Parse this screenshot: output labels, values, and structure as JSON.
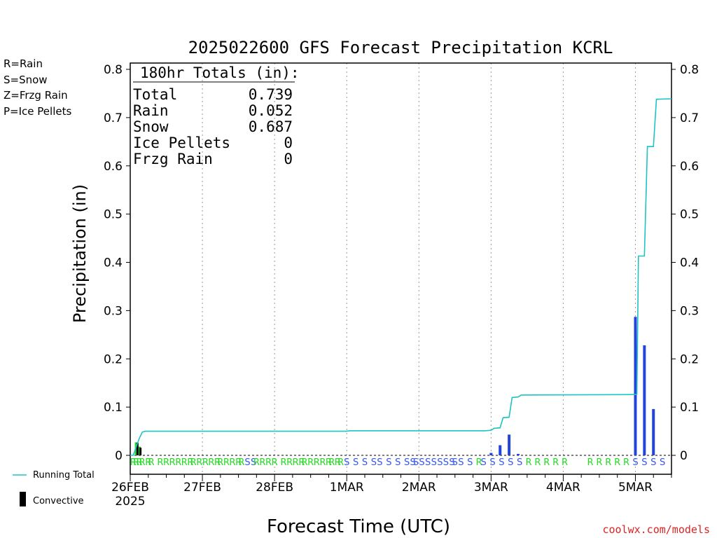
{
  "chart_data": {
    "type": "bar",
    "title": "2025022600 GFS Forecast Precipitation KCRL",
    "ylabel": "Precipitation (in)",
    "xlabel": "Forecast Time (UTC)",
    "ylim": [
      0,
      0.8
    ],
    "yticks": [
      "0",
      "0.1",
      "0.2",
      "0.3",
      "0.4",
      "0.5",
      "0.6",
      "0.7",
      "0.8"
    ],
    "xlim_hours": [
      0,
      180
    ],
    "xticks": [
      {
        "label": "26FEB",
        "sublabel": "2025",
        "hour": 0
      },
      {
        "label": "27FEB",
        "sublabel": "",
        "hour": 24
      },
      {
        "label": "28FEB",
        "sublabel": "",
        "hour": 48
      },
      {
        "label": "1MAR",
        "sublabel": "",
        "hour": 72
      },
      {
        "label": "2MAR",
        "sublabel": "",
        "hour": 96
      },
      {
        "label": "3MAR",
        "sublabel": "",
        "hour": 120
      },
      {
        "label": "4MAR",
        "sublabel": "",
        "hour": 144
      },
      {
        "label": "5MAR",
        "sublabel": "",
        "hour": 168
      }
    ],
    "grid": "vertical dotted at day boundaries",
    "legend_top_left": [
      {
        "text": "R=Rain",
        "color": "#22dd22"
      },
      {
        "text": "S=Snow",
        "color": "#3355ee"
      },
      {
        "text": "Z=Frzg Rain",
        "color": "#ee8833"
      },
      {
        "text": "P=Ice Pellets",
        "color": "#ee2299"
      }
    ],
    "legend_bottom": [
      {
        "text": "Running Total",
        "kind": "line",
        "color": "#1fc3c3"
      },
      {
        "text": "Convective",
        "kind": "bar",
        "color": "#000000"
      }
    ],
    "totals_box": {
      "heading": "180hr Totals (in):",
      "rows": [
        {
          "label": "Total",
          "value": "0.739"
        },
        {
          "label": "Rain",
          "value": "0.052"
        },
        {
          "label": "Snow",
          "value": "0.687"
        },
        {
          "label": "Ice Pellets",
          "value": "0"
        },
        {
          "label": "Frzg Rain",
          "value": "0"
        }
      ]
    },
    "series": [
      {
        "name": "Running Total",
        "kind": "line",
        "color": "#1fc3c3",
        "points": [
          [
            0,
            0
          ],
          [
            1,
            0
          ],
          [
            2,
            0.018
          ],
          [
            3,
            0.035
          ],
          [
            4,
            0.048
          ],
          [
            5,
            0.05
          ],
          [
            72,
            0.05
          ],
          [
            73,
            0.051
          ],
          [
            118,
            0.051
          ],
          [
            120,
            0.052
          ],
          [
            121,
            0.056
          ],
          [
            123,
            0.057
          ],
          [
            124,
            0.078
          ],
          [
            126,
            0.079
          ],
          [
            127,
            0.12
          ],
          [
            129,
            0.121
          ],
          [
            130,
            0.125
          ],
          [
            168,
            0.126
          ],
          [
            168.5,
            0.127
          ],
          [
            169,
            0.413
          ],
          [
            171,
            0.413
          ],
          [
            172,
            0.64
          ],
          [
            174,
            0.64
          ],
          [
            175,
            0.738
          ],
          [
            180,
            0.739
          ]
        ]
      },
      {
        "name": "Rain",
        "kind": "bar",
        "color": "#22dd22",
        "points": [
          [
            2,
            0.027
          ],
          [
            3,
            0.018
          ]
        ]
      },
      {
        "name": "Snow",
        "kind": "bar",
        "color": "#2244dd",
        "points": [
          [
            120,
            0.005
          ],
          [
            123,
            0.021
          ],
          [
            126,
            0.043
          ],
          [
            129,
            0.003
          ],
          [
            168,
            0.287
          ],
          [
            171,
            0.228
          ],
          [
            174,
            0.096
          ]
        ]
      },
      {
        "name": "Convective",
        "kind": "bar",
        "color": "#000000",
        "points": [
          [
            2.4,
            0.026
          ],
          [
            3.4,
            0.016
          ]
        ]
      }
    ],
    "ptype_markers": {
      "rain_color": "#22dd22",
      "snow_color": "#3355ee",
      "items": [
        {
          "h": 1,
          "t": "R"
        },
        {
          "h": 2,
          "t": "R"
        },
        {
          "h": 3,
          "t": "R"
        },
        {
          "h": 4,
          "t": "R"
        },
        {
          "h": 6,
          "t": "R"
        },
        {
          "h": 7,
          "t": "R"
        },
        {
          "h": 10,
          "t": "R"
        },
        {
          "h": 12,
          "t": "R"
        },
        {
          "h": 14,
          "t": "R"
        },
        {
          "h": 16,
          "t": "R"
        },
        {
          "h": 18,
          "t": "R"
        },
        {
          "h": 20,
          "t": "R"
        },
        {
          "h": 21,
          "t": "R"
        },
        {
          "h": 23,
          "t": "R"
        },
        {
          "h": 25,
          "t": "R"
        },
        {
          "h": 27,
          "t": "R"
        },
        {
          "h": 29,
          "t": "R"
        },
        {
          "h": 30,
          "t": "R"
        },
        {
          "h": 32,
          "t": "R"
        },
        {
          "h": 34,
          "t": "R"
        },
        {
          "h": 36,
          "t": "R"
        },
        {
          "h": 37,
          "t": "R"
        },
        {
          "h": 39,
          "t": "S"
        },
        {
          "h": 41,
          "t": "S"
        },
        {
          "h": 42,
          "t": "R"
        },
        {
          "h": 44,
          "t": "R"
        },
        {
          "h": 46,
          "t": "R"
        },
        {
          "h": 48,
          "t": "R"
        },
        {
          "h": 51,
          "t": "R"
        },
        {
          "h": 53,
          "t": "R"
        },
        {
          "h": 55,
          "t": "R"
        },
        {
          "h": 57,
          "t": "R"
        },
        {
          "h": 58,
          "t": "R"
        },
        {
          "h": 60,
          "t": "R"
        },
        {
          "h": 62,
          "t": "R"
        },
        {
          "h": 64,
          "t": "R"
        },
        {
          "h": 66,
          "t": "R"
        },
        {
          "h": 67,
          "t": "R"
        },
        {
          "h": 69,
          "t": "R"
        },
        {
          "h": 70,
          "t": "R"
        },
        {
          "h": 72,
          "t": "S"
        },
        {
          "h": 75,
          "t": "S"
        },
        {
          "h": 78,
          "t": "S"
        },
        {
          "h": 81,
          "t": "S"
        },
        {
          "h": 83,
          "t": "S"
        },
        {
          "h": 86,
          "t": "S"
        },
        {
          "h": 89,
          "t": "S"
        },
        {
          "h": 92,
          "t": "S"
        },
        {
          "h": 94,
          "t": "S"
        },
        {
          "h": 95,
          "t": "S"
        },
        {
          "h": 97,
          "t": "S"
        },
        {
          "h": 99,
          "t": "S"
        },
        {
          "h": 101,
          "t": "S"
        },
        {
          "h": 103,
          "t": "S"
        },
        {
          "h": 105,
          "t": "S"
        },
        {
          "h": 107,
          "t": "S"
        },
        {
          "h": 108,
          "t": "S"
        },
        {
          "h": 110,
          "t": "S"
        },
        {
          "h": 113,
          "t": "S"
        },
        {
          "h": 116,
          "t": "R"
        },
        {
          "h": 117.5,
          "t": "S"
        },
        {
          "h": 120.5,
          "t": "S"
        },
        {
          "h": 123.5,
          "t": "S"
        },
        {
          "h": 126.5,
          "t": "S"
        },
        {
          "h": 129.5,
          "t": "S"
        },
        {
          "h": 132.5,
          "t": "R"
        },
        {
          "h": 135.5,
          "t": "R"
        },
        {
          "h": 138.5,
          "t": "R"
        },
        {
          "h": 141.5,
          "t": "R"
        },
        {
          "h": 144.5,
          "t": "R"
        },
        {
          "h": 153,
          "t": "R"
        },
        {
          "h": 156,
          "t": "R"
        },
        {
          "h": 159,
          "t": "R"
        },
        {
          "h": 162,
          "t": "R"
        },
        {
          "h": 165,
          "t": "R"
        },
        {
          "h": 168,
          "t": "S"
        },
        {
          "h": 171,
          "t": "S"
        },
        {
          "h": 174,
          "t": "S"
        },
        {
          "h": 177,
          "t": "S"
        }
      ]
    }
  },
  "footer": {
    "credit": "coolwx.com/models",
    "credit_color": "#dd2222"
  }
}
